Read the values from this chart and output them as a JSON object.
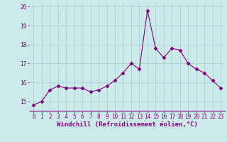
{
  "x": [
    0,
    1,
    2,
    3,
    4,
    5,
    6,
    7,
    8,
    9,
    10,
    11,
    12,
    13,
    14,
    15,
    16,
    17,
    18,
    19,
    20,
    21,
    22,
    23
  ],
  "y": [
    14.8,
    15.0,
    15.6,
    15.8,
    15.7,
    15.7,
    15.7,
    15.5,
    15.6,
    15.8,
    16.1,
    16.5,
    17.0,
    16.7,
    19.8,
    17.8,
    17.3,
    17.8,
    17.7,
    17.0,
    16.7,
    16.5,
    16.1,
    15.7
  ],
  "line_color": "#800080",
  "marker": "D",
  "marker_size": 2.5,
  "bg_color": "#cceaea",
  "grid_color": "#aad4d4",
  "xlabel": "Windchill (Refroidissement éolien,°C)",
  "xlabel_color": "#800080",
  "xlabel_fontsize": 6.5,
  "tick_color": "#800080",
  "tick_fontsize": 5.5,
  "ylim": [
    14.5,
    20.2
  ],
  "xlim": [
    -0.5,
    23.5
  ],
  "yticks": [
    15,
    16,
    17,
    18,
    19,
    20
  ],
  "xticks": [
    0,
    1,
    2,
    3,
    4,
    5,
    6,
    7,
    8,
    9,
    10,
    11,
    12,
    13,
    14,
    15,
    16,
    17,
    18,
    19,
    20,
    21,
    22,
    23
  ]
}
